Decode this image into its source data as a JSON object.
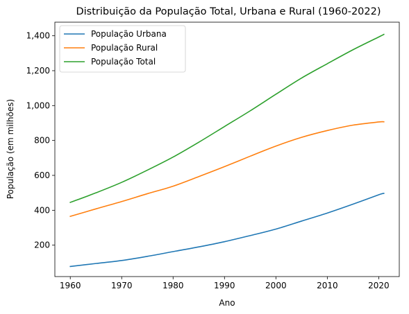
{
  "chart_data": {
    "type": "line",
    "title": "Distribuição da População Total, Urbana e Rural (1960-2022)",
    "xlabel": "Ano",
    "ylabel": "População (em milhões)",
    "xlim": [
      1957.0,
      2024.0
    ],
    "ylim": [
      20,
      1478
    ],
    "xticks": [
      1960,
      1970,
      1980,
      1990,
      2000,
      2010,
      2020
    ],
    "yticks": [
      200,
      400,
      600,
      800,
      1000,
      1200,
      1400
    ],
    "ytick_labels": [
      "200",
      "400",
      "600",
      "800",
      "1,000",
      "1,200",
      "1,400"
    ],
    "grid": false,
    "legend_position": "upper-left",
    "x": [
      1960,
      1965,
      1970,
      1975,
      1980,
      1985,
      1990,
      1995,
      2000,
      2005,
      2010,
      2015,
      2020,
      2021
    ],
    "series": [
      {
        "name": "População Urbana",
        "color": "#1f77b4",
        "values": [
          78,
          95,
          112,
          136,
          163,
          190,
          220,
          255,
          292,
          338,
          384,
          435,
          489,
          497
        ]
      },
      {
        "name": "População Rural",
        "color": "#ff7f0e",
        "values": [
          365,
          408,
          450,
          495,
          538,
          593,
          650,
          710,
          768,
          818,
          857,
          888,
          906,
          907
        ]
      },
      {
        "name": "População Total",
        "color": "#2ca02c",
        "values": [
          445,
          500,
          560,
          630,
          705,
          790,
          880,
          970,
          1065,
          1158,
          1240,
          1320,
          1393,
          1408
        ]
      }
    ]
  }
}
